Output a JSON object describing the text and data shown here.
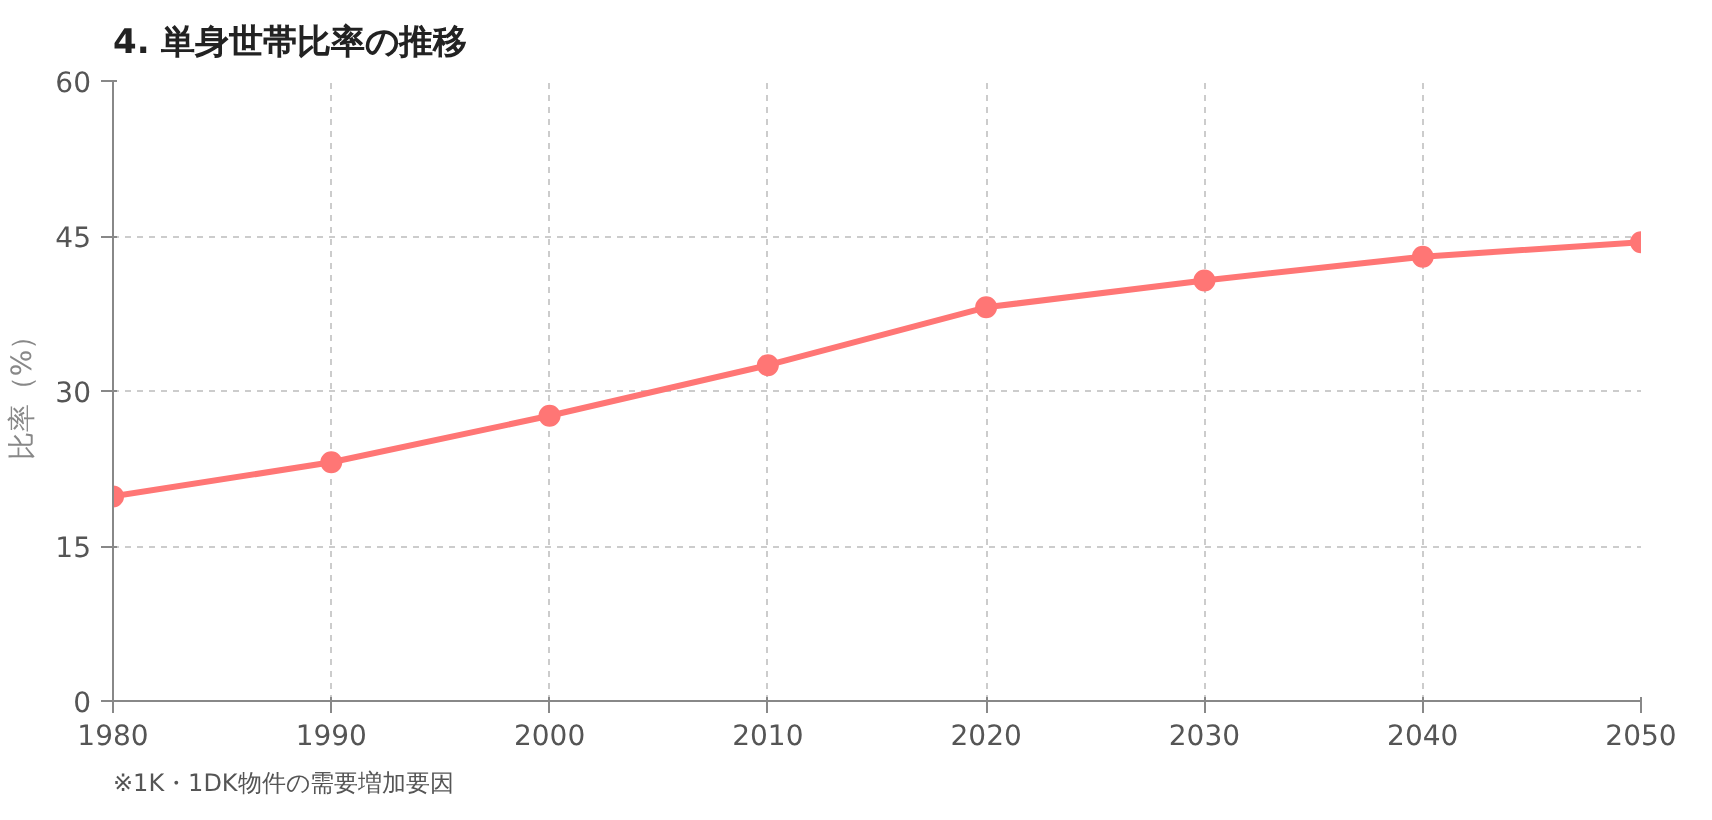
{
  "chart_data": {
    "type": "line",
    "title": "4. 単身世帯比率の推移",
    "ylabel": "比率（%）",
    "x": [
      1980,
      1990,
      2000,
      2010,
      2020,
      2030,
      2040,
      2050
    ],
    "series": [
      {
        "color": "#ff7675",
        "values": [
          19.8,
          23.1,
          27.6,
          32.5,
          38.1,
          40.7,
          43.0,
          44.4
        ]
      }
    ],
    "xlim": [
      1980,
      2050
    ],
    "xticks": [
      1980,
      1990,
      2000,
      2010,
      2020,
      2030,
      2040,
      2050
    ],
    "ylim": [
      0,
      60
    ],
    "yticks": [
      0,
      15,
      30,
      45,
      60
    ],
    "grid": true,
    "marker": "circle",
    "line_style": "solid",
    "annotations": [
      "※1K・1DK物件の需要増加要因"
    ]
  }
}
